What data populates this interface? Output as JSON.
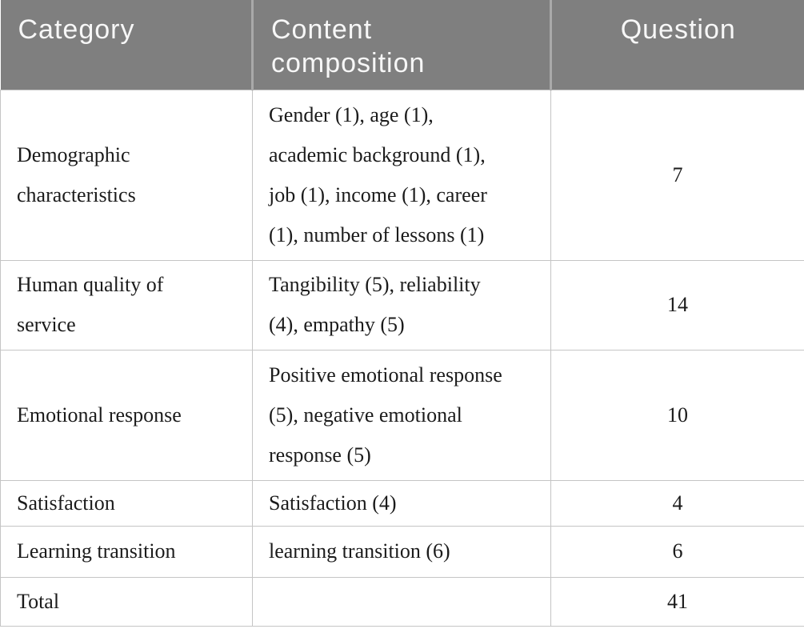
{
  "table": {
    "header": {
      "category": "Category",
      "composition": "Content\ncomposition",
      "question": "Question"
    },
    "rows": [
      {
        "category": "Demographic\ncharacteristics",
        "composition": "Gender (1), age (1),\nacademic background (1),\njob (1), income (1), career\n(1), number of lessons (1)",
        "question": "7"
      },
      {
        "category": "Human quality of\nservice",
        "composition": "Tangibility (5), reliability\n(4), empathy (5)",
        "question": "14"
      },
      {
        "category": "Emotional response",
        "composition": "Positive emotional response\n(5), negative emotional\nresponse (5)",
        "question": "10"
      },
      {
        "category": "Satisfaction",
        "composition": "Satisfaction (4)",
        "question": "4"
      },
      {
        "category": "Learning transition",
        "composition": "learning transition (6)",
        "question": "6"
      },
      {
        "category": "Total",
        "composition": "",
        "question": "41"
      }
    ]
  },
  "colors": {
    "header_bg": "#7f7f7f",
    "header_text": "#f7f7f7",
    "header_divider": "#a9a9a9",
    "border": "#c5c5c5",
    "body_text": "#1b1b1b"
  }
}
